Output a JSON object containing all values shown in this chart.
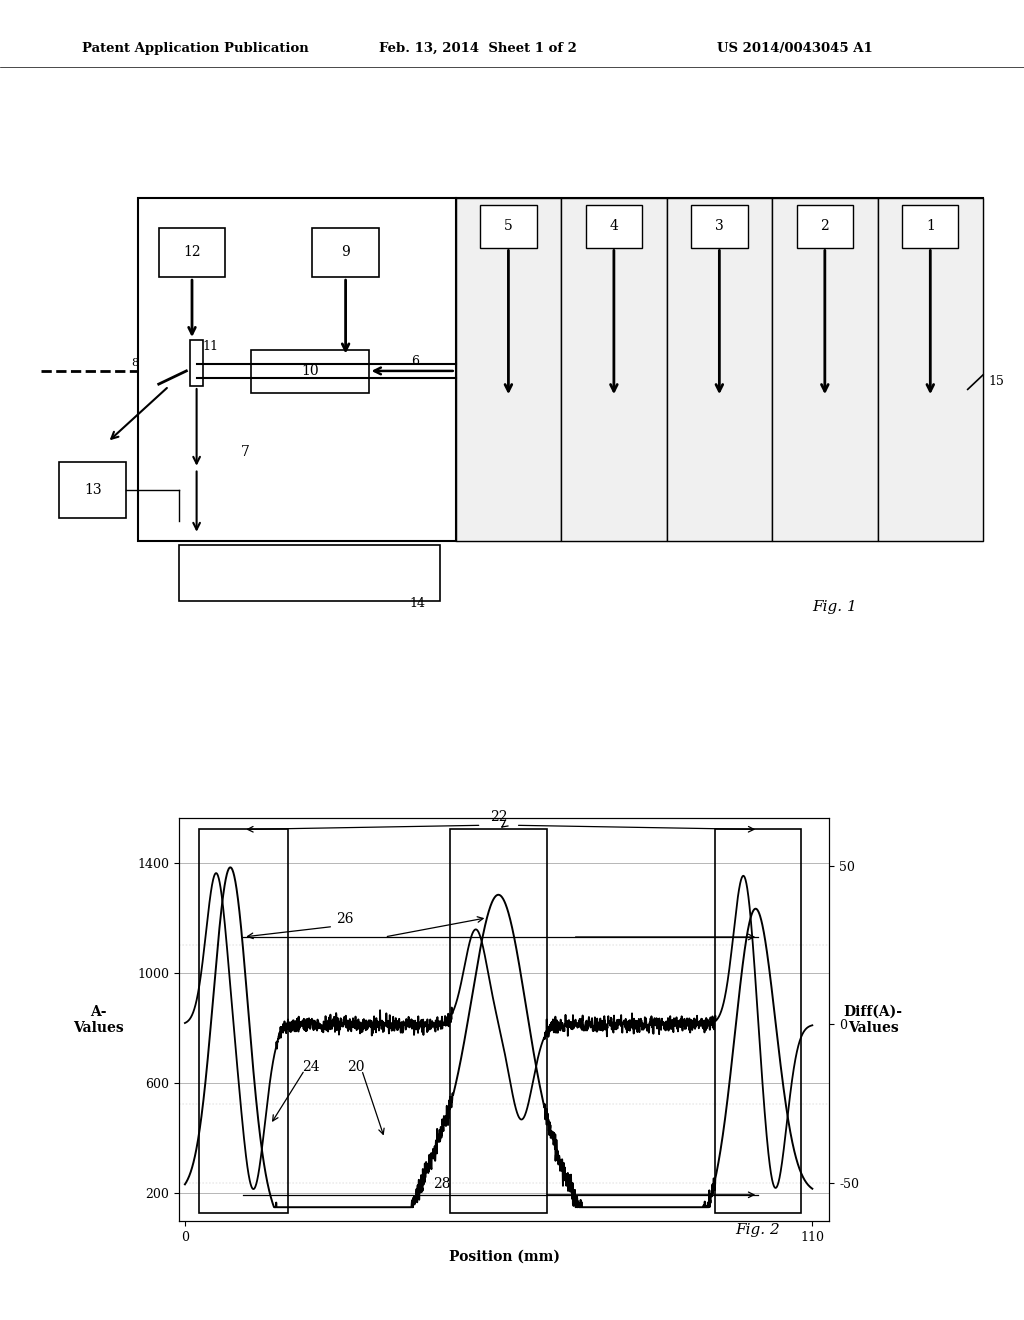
{
  "bg_color": "#ffffff",
  "header_left": "Patent Application Publication",
  "header_center": "Feb. 13, 2014  Sheet 1 of 2",
  "header_right": "US 2014/0043045 A1",
  "fig1_label": "Fig. 1",
  "fig2_label": "Fig. 2",
  "fig2": {
    "xlabel": "Position (mm)",
    "ylabel_left": "A-\nValues",
    "ylabel_right": "Diff(A)-\nValues",
    "yticks_left": [
      200,
      600,
      1000,
      1400
    ],
    "yticks_right": [
      -50,
      0,
      50
    ],
    "xticks": [
      0,
      110
    ]
  }
}
